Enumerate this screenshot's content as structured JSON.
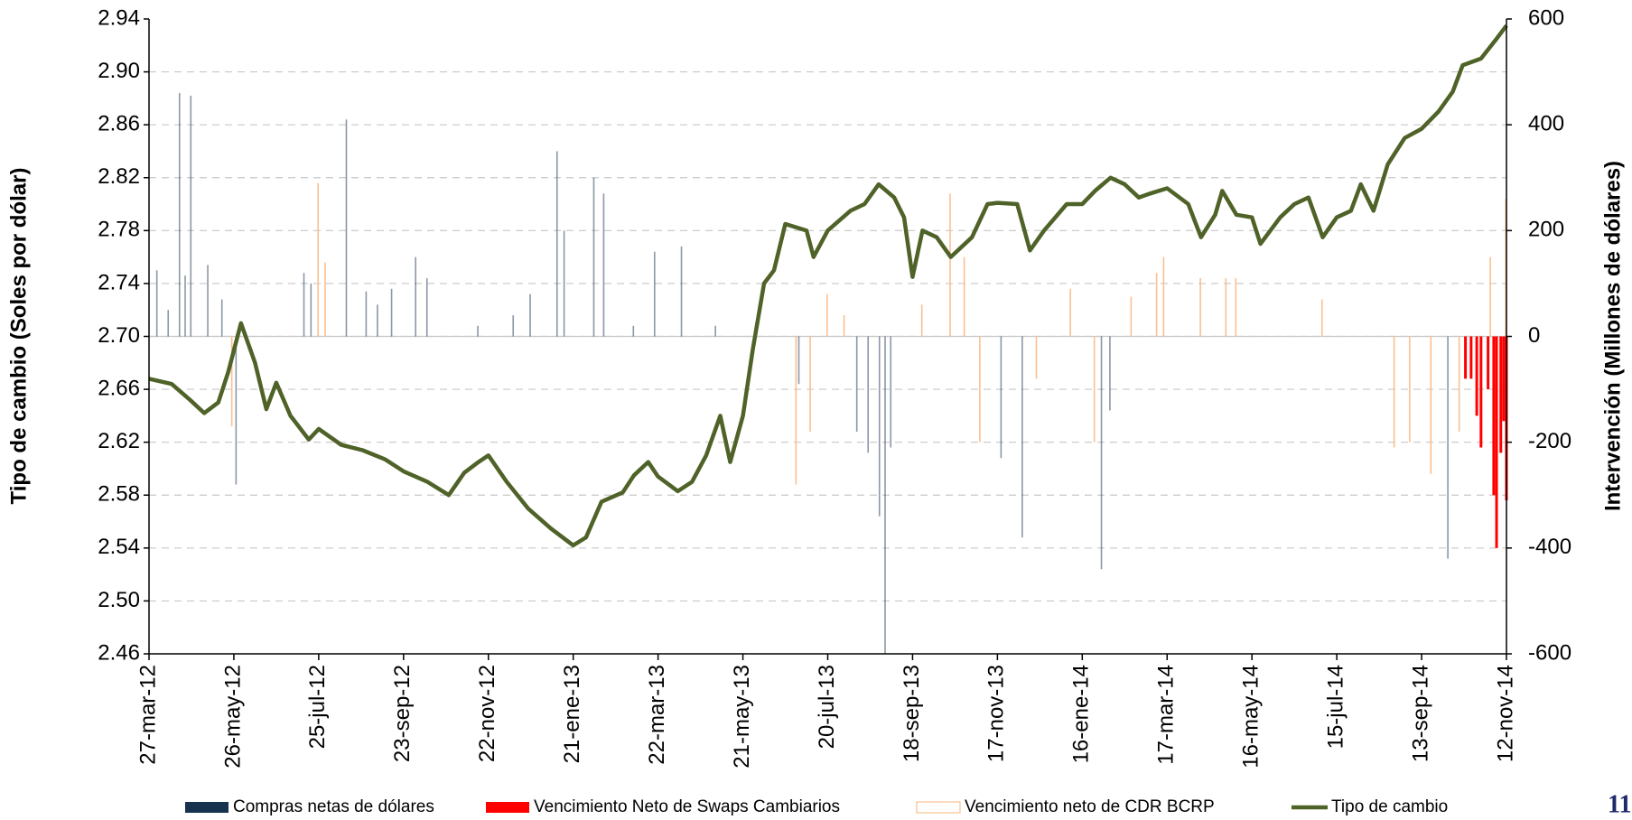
{
  "chart_data": {
    "type": "combo",
    "y_label": "Tipo de cambio (Soles por dólar)",
    "y2_label": "Intervención (Millones de dólares)",
    "page_number": "11",
    "xlim": [
      "2012-03-27",
      "2014-11-12"
    ],
    "xticks": [
      {
        "value": "2012-03-27",
        "label": "27-mar-12"
      },
      {
        "value": "2012-05-26",
        "label": "26-may-12"
      },
      {
        "value": "2012-07-25",
        "label": "25-jul-12"
      },
      {
        "value": "2012-09-23",
        "label": "23-sep-12"
      },
      {
        "value": "2012-11-22",
        "label": "22-nov-12"
      },
      {
        "value": "2013-01-21",
        "label": "21-ene-13"
      },
      {
        "value": "2013-03-22",
        "label": "22-mar-13"
      },
      {
        "value": "2013-05-21",
        "label": "21-may-13"
      },
      {
        "value": "2013-07-20",
        "label": "20-jul-13"
      },
      {
        "value": "2013-09-18",
        "label": "18-sep-13"
      },
      {
        "value": "2013-11-17",
        "label": "17-nov-13"
      },
      {
        "value": "2014-01-16",
        "label": "16-ene-14"
      },
      {
        "value": "2014-03-17",
        "label": "17-mar-14"
      },
      {
        "value": "2014-05-16",
        "label": "16-may-14"
      },
      {
        "value": "2014-07-15",
        "label": "15-jul-14"
      },
      {
        "value": "2014-09-13",
        "label": "13-sep-14"
      },
      {
        "value": "2014-11-12",
        "label": "12-nov-14"
      }
    ],
    "ylim": [
      2.46,
      2.94
    ],
    "yticks": [
      2.46,
      {
        "value": 2.5,
        "label": "2.50"
      },
      2.54,
      2.58,
      2.62,
      2.66,
      {
        "value": 2.7,
        "label": "2.70"
      },
      2.74,
      2.78,
      2.82,
      2.86,
      {
        "value": 2.9,
        "label": "2.90"
      },
      2.94
    ],
    "y2lim": [
      -600,
      600
    ],
    "y2ticks": [
      -600,
      -400,
      -200,
      0,
      200,
      400,
      600
    ],
    "grid": true,
    "series": [
      {
        "name": "Compras netas de dólares",
        "type": "bar",
        "axis": "y2",
        "color": "#17324d",
        "x": [
          "2012-04-02",
          "2012-04-10",
          "2012-04-18",
          "2012-04-22",
          "2012-04-26",
          "2012-05-08",
          "2012-05-18",
          "2012-05-28",
          "2012-07-15",
          "2012-07-20",
          "2012-08-14",
          "2012-08-28",
          "2012-09-05",
          "2012-09-15",
          "2012-10-02",
          "2012-10-10",
          "2012-11-15",
          "2012-12-10",
          "2012-12-22",
          "2013-01-10",
          "2013-01-15",
          "2013-02-05",
          "2013-02-12",
          "2013-03-05",
          "2013-03-20",
          "2013-04-08",
          "2013-05-02",
          "2013-06-30",
          "2013-08-10",
          "2013-08-18",
          "2013-08-26",
          "2013-08-30",
          "2013-09-03",
          "2013-11-20",
          "2013-12-05",
          "2014-01-30",
          "2014-02-05",
          "2014-10-02"
        ],
        "values": [
          125,
          50,
          460,
          115,
          455,
          135,
          70,
          -280,
          120,
          100,
          410,
          85,
          60,
          90,
          150,
          110,
          20,
          40,
          80,
          350,
          200,
          300,
          270,
          20,
          160,
          170,
          20,
          -90,
          -180,
          -220,
          -340,
          -600,
          -210,
          -230,
          -380,
          -440,
          -140,
          -420
        ]
      },
      {
        "name": "Vencimiento Neto de Swaps Cambiarios",
        "type": "bar",
        "axis": "y2",
        "color": "#ff0000",
        "x": [
          "2014-10-14",
          "2014-10-18",
          "2014-10-22",
          "2014-10-25",
          "2014-10-30",
          "2014-11-03",
          "2014-11-05",
          "2014-11-08",
          "2014-11-10",
          "2014-11-12"
        ],
        "values": [
          -80,
          -80,
          -150,
          -210,
          -100,
          -300,
          -400,
          -220,
          -160,
          -310
        ]
      },
      {
        "name": "Vencimiento neto de CDR BCRP",
        "type": "bar",
        "axis": "y2",
        "color": "#fac090",
        "x": [
          "2012-05-25",
          "2012-07-25",
          "2012-07-30",
          "2013-06-28",
          "2013-07-08",
          "2013-07-20",
          "2013-08-01",
          "2013-09-25",
          "2013-10-15",
          "2013-10-25",
          "2013-11-05",
          "2013-12-15",
          "2014-01-08",
          "2014-01-25",
          "2014-02-20",
          "2014-03-10",
          "2014-03-15",
          "2014-04-10",
          "2014-04-28",
          "2014-05-05",
          "2014-07-05",
          "2014-08-25",
          "2014-09-05",
          "2014-09-20",
          "2014-10-10",
          "2014-11-01",
          "2014-11-12"
        ],
        "values": [
          -170,
          290,
          140,
          -280,
          -180,
          80,
          40,
          60,
          270,
          150,
          -200,
          -80,
          90,
          -200,
          75,
          120,
          150,
          110,
          110,
          110,
          70,
          -210,
          -200,
          -260,
          -180,
          150,
          260
        ]
      },
      {
        "name": "Tipo de cambio",
        "type": "line",
        "axis": "y",
        "color": "#4f6228",
        "x": [
          "2012-03-27",
          "2012-04-12",
          "2012-04-25",
          "2012-05-05",
          "2012-05-15",
          "2012-05-22",
          "2012-05-31",
          "2012-06-10",
          "2012-06-18",
          "2012-06-25",
          "2012-07-05",
          "2012-07-18",
          "2012-07-25",
          "2012-08-10",
          "2012-08-25",
          "2012-09-10",
          "2012-09-23",
          "2012-10-10",
          "2012-10-25",
          "2012-11-05",
          "2012-11-15",
          "2012-11-22",
          "2012-12-05",
          "2012-12-20",
          "2013-01-05",
          "2013-01-21",
          "2013-01-30",
          "2013-02-10",
          "2013-02-25",
          "2013-03-05",
          "2013-03-15",
          "2013-03-22",
          "2013-04-05",
          "2013-04-15",
          "2013-04-25",
          "2013-05-05",
          "2013-05-12",
          "2013-05-21",
          "2013-05-28",
          "2013-06-05",
          "2013-06-12",
          "2013-06-20",
          "2013-07-05",
          "2013-07-10",
          "2013-07-20",
          "2013-08-05",
          "2013-08-15",
          "2013-08-25",
          "2013-09-05",
          "2013-09-12",
          "2013-09-18",
          "2013-09-25",
          "2013-10-05",
          "2013-10-15",
          "2013-10-30",
          "2013-11-10",
          "2013-11-17",
          "2013-12-01",
          "2013-12-10",
          "2013-12-20",
          "2014-01-05",
          "2014-01-16",
          "2014-01-25",
          "2014-02-05",
          "2014-02-15",
          "2014-02-25",
          "2014-03-05",
          "2014-03-17",
          "2014-04-01",
          "2014-04-10",
          "2014-04-20",
          "2014-04-25",
          "2014-05-05",
          "2014-05-16",
          "2014-05-22",
          "2014-06-05",
          "2014-06-15",
          "2014-06-25",
          "2014-07-05",
          "2014-07-15",
          "2014-07-25",
          "2014-08-01",
          "2014-08-10",
          "2014-08-20",
          "2014-09-01",
          "2014-09-13",
          "2014-09-25",
          "2014-10-05",
          "2014-10-12",
          "2014-10-25",
          "2014-11-05",
          "2014-11-12"
        ],
        "values": [
          2.668,
          2.664,
          2.652,
          2.642,
          2.65,
          2.673,
          2.71,
          2.68,
          2.645,
          2.665,
          2.64,
          2.622,
          2.63,
          2.618,
          2.614,
          2.607,
          2.598,
          2.59,
          2.58,
          2.597,
          2.605,
          2.61,
          2.59,
          2.57,
          2.555,
          2.542,
          2.548,
          2.575,
          2.582,
          2.595,
          2.605,
          2.594,
          2.583,
          2.59,
          2.61,
          2.64,
          2.605,
          2.64,
          2.69,
          2.74,
          2.75,
          2.785,
          2.78,
          2.76,
          2.78,
          2.795,
          2.8,
          2.815,
          2.805,
          2.79,
          2.745,
          2.78,
          2.775,
          2.76,
          2.775,
          2.8,
          2.801,
          2.8,
          2.765,
          2.78,
          2.8,
          2.8,
          2.81,
          2.82,
          2.815,
          2.805,
          2.808,
          2.812,
          2.8,
          2.775,
          2.792,
          2.81,
          2.792,
          2.79,
          2.77,
          2.79,
          2.8,
          2.805,
          2.775,
          2.79,
          2.795,
          2.815,
          2.795,
          2.83,
          2.85,
          2.857,
          2.87,
          2.885,
          2.905,
          2.91,
          2.925,
          2.935
        ]
      }
    ]
  }
}
